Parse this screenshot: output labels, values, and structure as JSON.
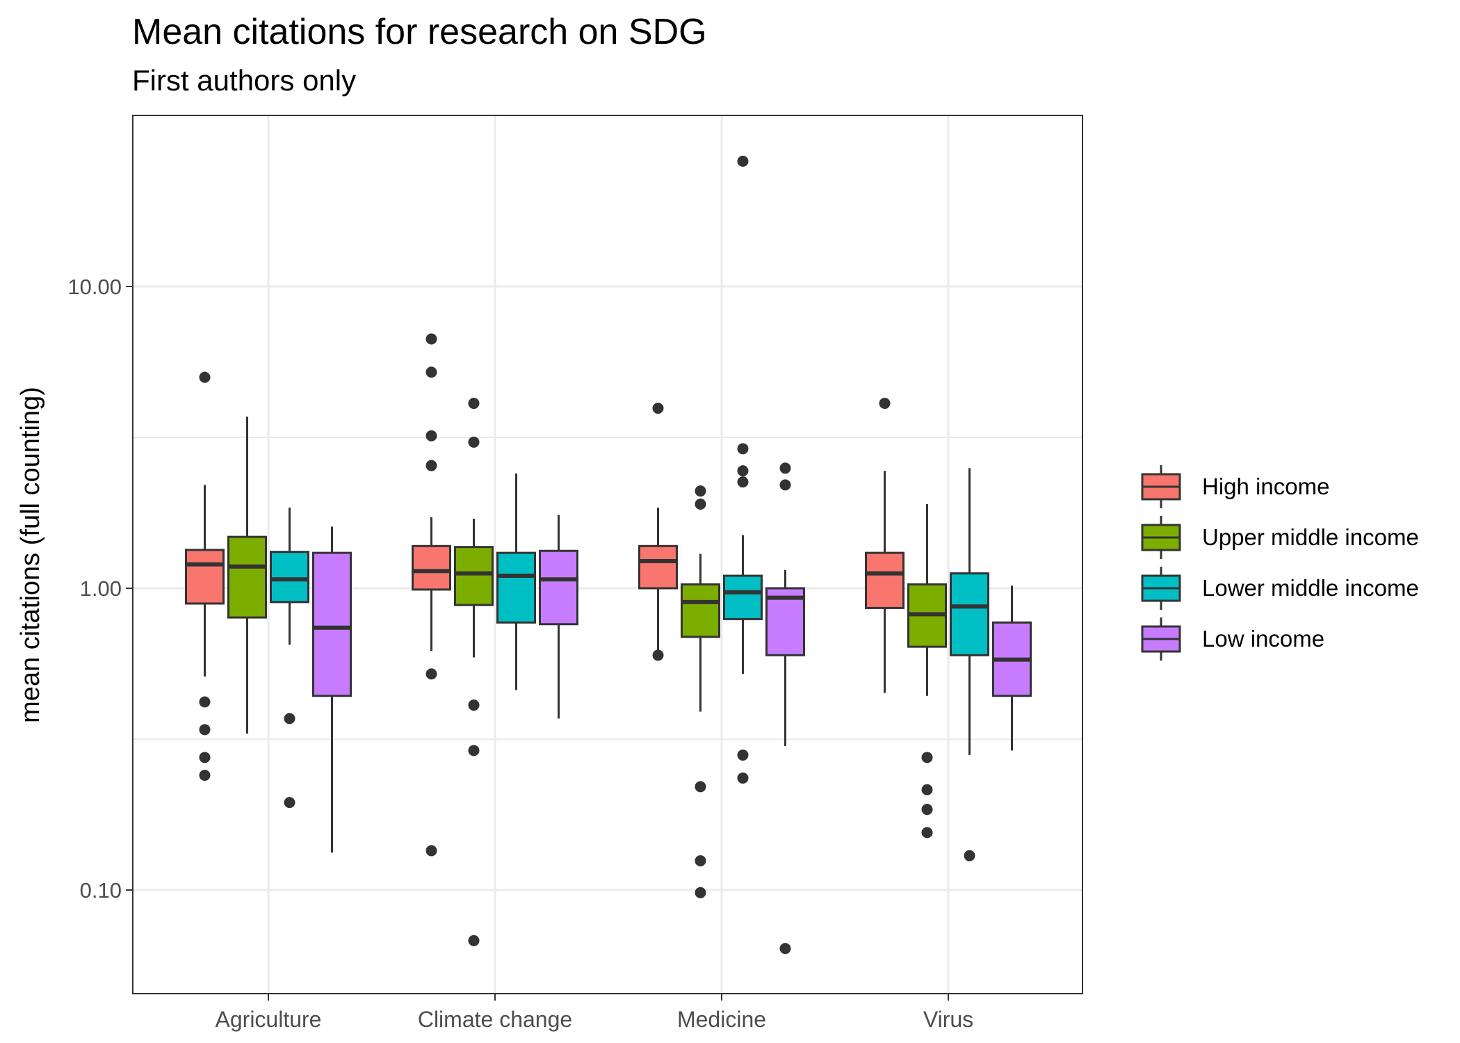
{
  "chart_data": {
    "type": "box",
    "title": "Mean citations for research on SDG",
    "subtitle": "First authors only",
    "xlabel": "",
    "ylabel": "mean citations (full counting)",
    "y_scale": "log10",
    "ylim": [
      0.045,
      30
    ],
    "y_ticks": [
      0.1,
      1,
      10
    ],
    "y_tick_labels": [
      "0.10",
      "1.00",
      "10.00"
    ],
    "grid": true,
    "legend_position": "right",
    "categories": [
      "Agriculture",
      "Climate change",
      "Medicine",
      "Virus"
    ],
    "series": [
      {
        "name": "High income",
        "color": "#F8766D",
        "boxes": [
          {
            "whisker_low": 0.51,
            "q1": 0.89,
            "median": 1.2,
            "q3": 1.34,
            "whisker_high": 2.2,
            "outliers": [
              5.0,
              0.42,
              0.34,
              0.275,
              0.24
            ]
          },
          {
            "whisker_low": 0.62,
            "q1": 0.99,
            "median": 1.14,
            "q3": 1.38,
            "whisker_high": 1.72,
            "outliers": [
              6.7,
              5.2,
              3.2,
              2.55,
              0.52,
              0.135
            ]
          },
          {
            "whisker_low": 0.6,
            "q1": 1.0,
            "median": 1.23,
            "q3": 1.38,
            "whisker_high": 1.85,
            "outliers": [
              3.95,
              0.6
            ]
          },
          {
            "whisker_low": 0.45,
            "q1": 0.86,
            "median": 1.12,
            "q3": 1.31,
            "whisker_high": 2.45,
            "outliers": [
              4.1
            ]
          }
        ]
      },
      {
        "name": "Upper middle income",
        "color": "#7CAE00",
        "boxes": [
          {
            "whisker_low": 0.33,
            "q1": 0.8,
            "median": 1.18,
            "q3": 1.48,
            "whisker_high": 3.7,
            "outliers": []
          },
          {
            "whisker_low": 0.59,
            "q1": 0.88,
            "median": 1.12,
            "q3": 1.37,
            "whisker_high": 1.7,
            "outliers": [
              4.1,
              3.05,
              0.41,
              0.29,
              0.068
            ]
          },
          {
            "whisker_low": 0.39,
            "q1": 0.69,
            "median": 0.9,
            "q3": 1.03,
            "whisker_high": 1.3,
            "outliers": [
              2.1,
              1.9,
              0.22,
              0.125,
              0.098
            ]
          },
          {
            "whisker_low": 0.44,
            "q1": 0.64,
            "median": 0.82,
            "q3": 1.03,
            "whisker_high": 1.9,
            "outliers": [
              0.275,
              0.215,
              0.185,
              0.155
            ]
          }
        ]
      },
      {
        "name": "Lower middle income",
        "color": "#00BFC4",
        "boxes": [
          {
            "whisker_low": 0.65,
            "q1": 0.9,
            "median": 1.07,
            "q3": 1.32,
            "whisker_high": 1.85,
            "outliers": [
              0.37,
              0.195
            ]
          },
          {
            "whisker_low": 0.46,
            "q1": 0.77,
            "median": 1.1,
            "q3": 1.31,
            "whisker_high": 2.4,
            "outliers": []
          },
          {
            "whisker_low": 0.52,
            "q1": 0.79,
            "median": 0.97,
            "q3": 1.1,
            "whisker_high": 1.5,
            "outliers": [
              26.0,
              2.9,
              2.45,
              2.25,
              0.28,
              0.235
            ]
          },
          {
            "whisker_low": 0.28,
            "q1": 0.6,
            "median": 0.87,
            "q3": 1.12,
            "whisker_high": 2.5,
            "outliers": [
              0.13
            ]
          }
        ]
      },
      {
        "name": "Low income",
        "color": "#C77CFF",
        "boxes": [
          {
            "whisker_low": 0.133,
            "q1": 0.44,
            "median": 0.74,
            "q3": 1.31,
            "whisker_high": 1.6,
            "outliers": []
          },
          {
            "whisker_low": 0.37,
            "q1": 0.76,
            "median": 1.07,
            "q3": 1.33,
            "whisker_high": 1.75,
            "outliers": []
          },
          {
            "whisker_low": 0.3,
            "q1": 0.6,
            "median": 0.93,
            "q3": 1.0,
            "whisker_high": 1.15,
            "outliers": [
              2.5,
              2.2,
              0.064
            ]
          },
          {
            "whisker_low": 0.29,
            "q1": 0.44,
            "median": 0.58,
            "q3": 0.77,
            "whisker_high": 1.02,
            "outliers": []
          }
        ]
      }
    ]
  }
}
